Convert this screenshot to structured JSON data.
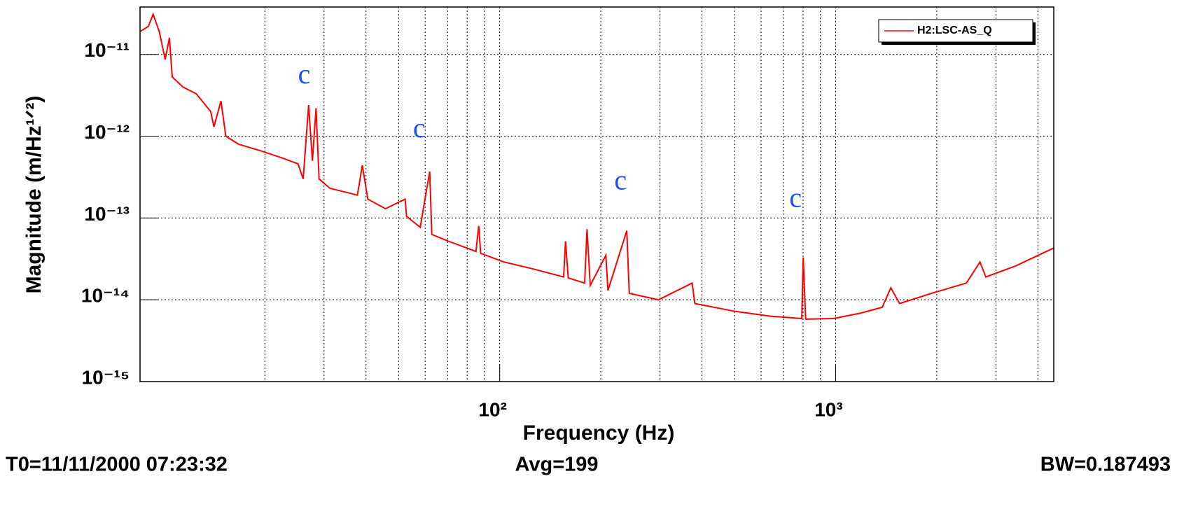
{
  "chart_data": {
    "type": "line",
    "log_x": true,
    "log_y": true,
    "x_label": "Frequency (Hz)",
    "y_label": "Magnitude (m/Hz¹ᐟ²)",
    "x": [
      8.5,
      9.0,
      9.3,
      9.7,
      10.1,
      10.4,
      10.6,
      11.4,
      12.5,
      13.8,
      14.1,
      14.8,
      15.3,
      16.7,
      19.3,
      22.3,
      25.1,
      26,
      27,
      27.7,
      28.4,
      29,
      31.3,
      36,
      37.7,
      39,
      40.5,
      45.7,
      52.3,
      52.8,
      58,
      61.9,
      62.8,
      70.4,
      85,
      86.6,
      87.8,
      103,
      125,
      155,
      157,
      160,
      179,
      182,
      186,
      207,
      210,
      239,
      243,
      297,
      374,
      381,
      503,
      640,
      793,
      801,
      814,
      985,
      1192,
      1376,
      1460,
      1550,
      1930,
      2450,
      2690,
      2800,
      3440,
      4460
    ],
    "series": [
      {
        "name": "H2:LSC-AS_Q",
        "color": "#ff0000",
        "values": [
          1.9e-11,
          2.2e-11,
          3.1e-11,
          1.9e-11,
          8.7e-12,
          1.6e-11,
          5.3e-12,
          4e-12,
          3.3e-12,
          2e-12,
          1.3e-12,
          2.7e-12,
          1e-12,
          8e-13,
          6.7e-13,
          5.5e-13,
          4.6e-13,
          3e-13,
          2.4e-12,
          5e-13,
          2.2e-12,
          3e-13,
          2.3e-13,
          2e-13,
          1.9e-13,
          4.4e-13,
          1.7e-13,
          1.3e-13,
          1.7e-13,
          1.05e-13,
          7.7e-14,
          3.7e-13,
          6.3e-14,
          5.2e-14,
          3.9e-14,
          8e-14,
          3.7e-14,
          2.9e-14,
          2.4e-14,
          1.9e-14,
          5.2e-14,
          1.85e-14,
          1.6e-14,
          7.3e-14,
          1.5e-14,
          3.5e-14,
          1.3e-14,
          7e-14,
          1.2e-14,
          1e-14,
          1.6e-14,
          9e-15,
          7.2e-15,
          6.3e-15,
          5.9e-15,
          3.3e-14,
          5.8e-15,
          5.9e-15,
          6.9e-15,
          8.1e-15,
          1.4e-14,
          9e-15,
          1.2e-14,
          1.6e-14,
          2.9e-14,
          1.9e-14,
          2.6e-14,
          4.3e-14
        ]
      }
    ],
    "xlim": [
      8.5,
      4460
    ],
    "ylim": [
      1e-15,
      3.8e-11
    ],
    "xticks": [
      {
        "value": 100,
        "label": "10²"
      },
      {
        "value": 1000,
        "label": "10³"
      }
    ],
    "xgrid": [
      20,
      30,
      40,
      50,
      60,
      70,
      80,
      90,
      100,
      200,
      300,
      400,
      500,
      600,
      700,
      800,
      900,
      1000,
      2000,
      3000,
      4000
    ],
    "yticks": [
      {
        "value": 1e-15,
        "label": "10⁻¹⁵"
      },
      {
        "value": 1e-14,
        "label": "10⁻¹⁴"
      },
      {
        "value": 1e-13,
        "label": "10⁻¹³"
      },
      {
        "value": 1e-12,
        "label": "10⁻¹²"
      },
      {
        "value": 1e-11,
        "label": "10⁻¹¹"
      }
    ],
    "grid": true,
    "legend": "top-right",
    "annotations": [
      {
        "text": "c",
        "x": 26.2,
        "y": 5.3e-12,
        "color": "#1a4fff"
      },
      {
        "text": "c",
        "x": 57.6,
        "y": 1.17e-12,
        "color": "#1a4fff"
      },
      {
        "text": "c",
        "x": 229,
        "y": 2.67e-13,
        "color": "#1a4fff"
      },
      {
        "text": "c",
        "x": 760,
        "y": 1.64e-13,
        "color": "#1a4fff"
      }
    ],
    "footer": {
      "t0": "T0=11/11/2000 07:23:32",
      "avg": "Avg=199",
      "bw": "BW=0.187493"
    }
  }
}
